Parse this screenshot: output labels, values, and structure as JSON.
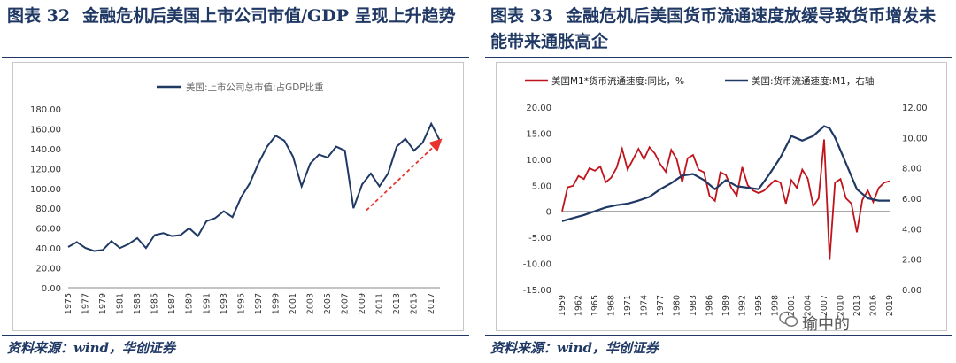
{
  "left": {
    "fig_num": "图表 32",
    "title": "金融危机后美国上市公司市值/GDP 呈现上升趋势",
    "source": "资料来源：wind，华创证券"
  },
  "right": {
    "fig_num": "图表 33",
    "title": "金融危机后美国货币流通速度放缓导致货币增发未能带来通胀高企",
    "source": "资料来源：wind，华创证券"
  },
  "watermark": "瑜中的",
  "chart_data": [
    {
      "type": "line",
      "title": "",
      "legend": [
        "美国:上市公司总市值:占GDP比重"
      ],
      "colors": {
        "line": "#1f3864",
        "arrow": "#e8342e",
        "axis": "#888888",
        "text": "#333333"
      },
      "x": [
        1975,
        1976,
        1977,
        1978,
        1979,
        1980,
        1981,
        1982,
        1983,
        1984,
        1985,
        1986,
        1987,
        1988,
        1989,
        1990,
        1991,
        1992,
        1993,
        1994,
        1995,
        1996,
        1997,
        1998,
        1999,
        2000,
        2001,
        2002,
        2003,
        2004,
        2005,
        2006,
        2007,
        2008,
        2009,
        2010,
        2011,
        2012,
        2013,
        2014,
        2015,
        2016,
        2017,
        2018
      ],
      "values": [
        41,
        46,
        40,
        37,
        38,
        47,
        40,
        44,
        50,
        40,
        53,
        55,
        52,
        53,
        60,
        52,
        67,
        70,
        77,
        71,
        91,
        105,
        125,
        142,
        153,
        148,
        132,
        102,
        125,
        134,
        131,
        142,
        138,
        80,
        104,
        115,
        102,
        115,
        142,
        150,
        138,
        146,
        165,
        148
      ],
      "xticks": [
        1975,
        1977,
        1979,
        1981,
        1983,
        1985,
        1987,
        1989,
        1991,
        1993,
        1995,
        1997,
        1999,
        2001,
        2003,
        2005,
        2007,
        2009,
        2011,
        2013,
        2015,
        2017
      ],
      "yticks": [
        "0.00",
        "20.00",
        "40.00",
        "60.00",
        "80.00",
        "100.00",
        "120.00",
        "140.00",
        "160.00",
        "180.00"
      ],
      "ylim": [
        0,
        180
      ],
      "trend_arrow": {
        "from": [
          2009.5,
          78
        ],
        "to": [
          2018,
          148
        ]
      }
    },
    {
      "type": "line",
      "legend": [
        "美国M1*货币流通速度:同比，%",
        "美国:货币流通速度:M1，右轴"
      ],
      "colors": {
        "yoy": "#c0141c",
        "velocity": "#1f3864",
        "axis": "#888888",
        "text": "#333333"
      },
      "yoy_x": [
        1959,
        1960,
        1961,
        1962,
        1963,
        1964,
        1965,
        1966,
        1967,
        1968,
        1969,
        1970,
        1971,
        1972,
        1973,
        1974,
        1975,
        1976,
        1977,
        1978,
        1979,
        1980,
        1981,
        1982,
        1983,
        1984,
        1985,
        1986,
        1987,
        1988,
        1989,
        1990,
        1991,
        1992,
        1993,
        1994,
        1995,
        1996,
        1997,
        1998,
        1999,
        2000,
        2001,
        2002,
        2003,
        2004,
        2005,
        2006,
        2007,
        2008,
        2009,
        2010,
        2011,
        2012,
        2013,
        2014,
        2015,
        2016,
        2017,
        2018,
        2019
      ],
      "yoy_values": [
        0.0,
        4.6,
        4.9,
        6.8,
        6.2,
        8.3,
        7.8,
        8.6,
        5.6,
        6.5,
        8.4,
        12.0,
        8.0,
        10.0,
        12.0,
        10.0,
        12.3,
        11.1,
        9.0,
        7.6,
        11.8,
        10.0,
        5.6,
        10.2,
        10.8,
        8.0,
        7.5,
        3.0,
        2.0,
        7.5,
        7.0,
        4.5,
        3.0,
        8.5,
        5.0,
        4.0,
        3.5,
        4.0,
        5.0,
        6.0,
        5.5,
        1.5,
        6.0,
        4.5,
        8.0,
        6.3,
        1.0,
        2.5,
        13.8,
        -9.3,
        5.5,
        6.2,
        2.5,
        1.5,
        -4.0,
        2.2,
        4.0,
        1.8,
        4.5,
        5.5,
        5.8
      ],
      "velocity_x": [
        1959,
        1961,
        1963,
        1965,
        1967,
        1969,
        1971,
        1973,
        1975,
        1977,
        1979,
        1981,
        1983,
        1985,
        1987,
        1989,
        1991,
        1993,
        1995,
        1997,
        1999,
        2001,
        2003,
        2005,
        2007,
        2008,
        2009,
        2011,
        2013,
        2015,
        2017,
        2019
      ],
      "velocity_values": [
        4.5,
        4.7,
        4.9,
        5.15,
        5.4,
        5.55,
        5.65,
        5.85,
        6.1,
        6.6,
        7.0,
        7.5,
        7.6,
        7.2,
        6.6,
        7.2,
        6.8,
        6.7,
        6.6,
        7.6,
        8.7,
        10.1,
        9.8,
        10.1,
        10.75,
        10.6,
        10.0,
        8.3,
        6.6,
        6.0,
        5.85,
        5.85
      ],
      "xticks": [
        "1959",
        "1962",
        "1965",
        "1968",
        "1971",
        "1974",
        "1977",
        "1980",
        "1983",
        "1986",
        "1989",
        "1992",
        "1995",
        "1998",
        "2001",
        "2004",
        "2007",
        "2010",
        "2013",
        "2016",
        "2019"
      ],
      "left_yticks": [
        "-15.00",
        "-10.00",
        "-5.00",
        "0",
        "5.00",
        "10.00",
        "15.00",
        "20.00"
      ],
      "right_yticks": [
        "0.00",
        "2.00",
        "4.00",
        "6.00",
        "8.00",
        "10.00",
        "12.00"
      ],
      "left_ylim": [
        -15,
        20
      ],
      "right_ylim": [
        0,
        12
      ]
    }
  ]
}
